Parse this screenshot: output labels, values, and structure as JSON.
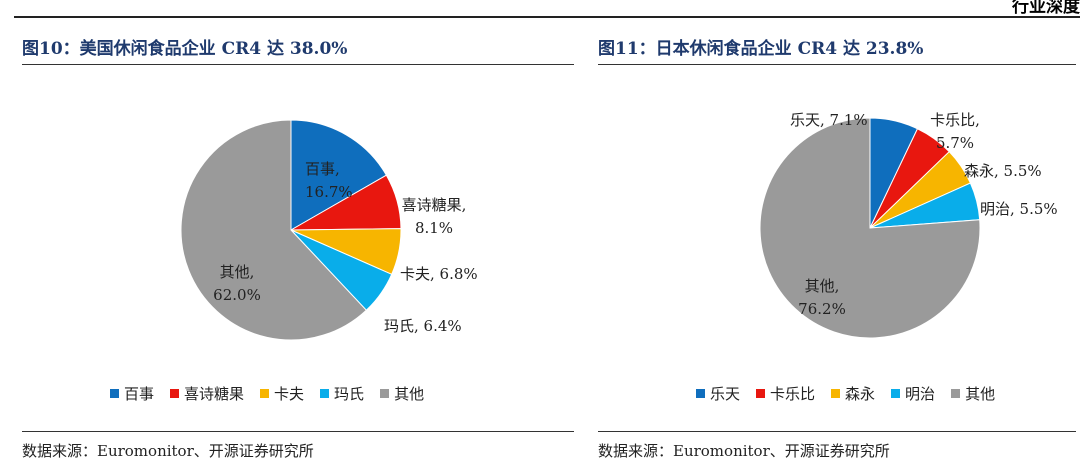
{
  "header": {
    "clip_text": "行业深度"
  },
  "panels": [
    {
      "title": "图10：美国休闲食品企业 CR4 达 38.0%",
      "source": "数据来源：Euromonitor、开源证券研究所"
    },
    {
      "title": "图11：日本休闲食品企业 CR4 达 23.8%",
      "source": "数据来源：Euromonitor、开源证券研究所"
    }
  ],
  "chart_data": [
    {
      "type": "pie",
      "title": "图10：美国休闲食品企业 CR4 达 38.0%",
      "categories": [
        "百事",
        "喜诗糖果",
        "卡夫",
        "玛氏",
        "其他"
      ],
      "values": [
        16.7,
        8.1,
        6.8,
        6.4,
        62.0
      ],
      "labels": [
        "百事,\n16.7%",
        "喜诗糖果,\n8.1%",
        "卡夫, 6.8%",
        "玛氏, 6.4%",
        "其他,\n62.0%"
      ],
      "colors": [
        "#0f6ebd",
        "#e8170f",
        "#f7b500",
        "#09adea",
        "#9a9a9a"
      ],
      "legend": "bottom"
    },
    {
      "type": "pie",
      "title": "图11：日本休闲食品企业 CR4 达 23.8%",
      "categories": [
        "乐天",
        "卡乐比",
        "森永",
        "明治",
        "其他"
      ],
      "values": [
        7.1,
        5.7,
        5.5,
        5.5,
        76.2
      ],
      "labels": [
        "乐天, 7.1%",
        "卡乐比,\n5.7%",
        "森永, 5.5%",
        "明治, 5.5%",
        "其他,\n76.2%"
      ],
      "colors": [
        "#0f6ebd",
        "#e8170f",
        "#f7b500",
        "#09adea",
        "#9a9a9a"
      ],
      "legend": "bottom"
    }
  ]
}
